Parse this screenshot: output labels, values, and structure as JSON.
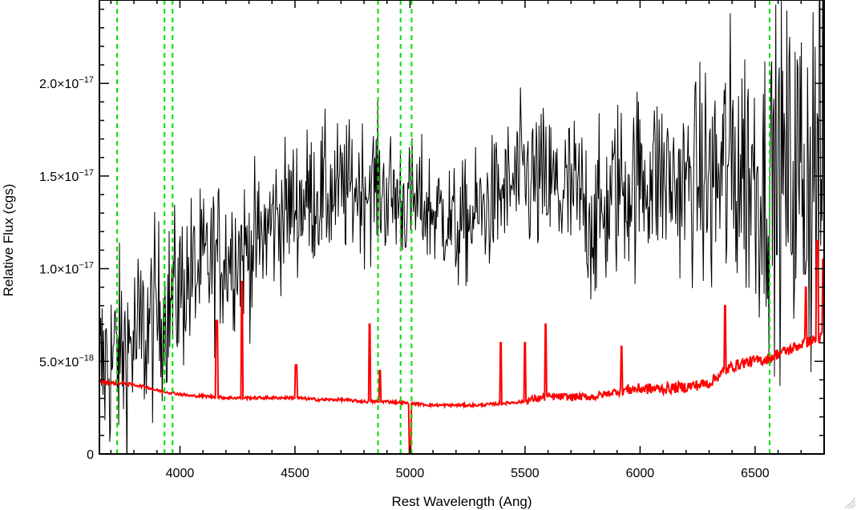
{
  "chart_data": {
    "type": "line",
    "xlabel": "Rest Wavelength (Ang)",
    "ylabel": "Relative Flux (cgs)",
    "xlim": [
      3650,
      6800
    ],
    "ylim": [
      0,
      2.45e-17
    ],
    "x_ticks": [
      4000,
      4500,
      5000,
      5500,
      6000,
      6500
    ],
    "x_tick_labels": [
      "4000",
      "4500",
      "5000",
      "5500",
      "6000",
      "6500"
    ],
    "y_ticks": [
      0,
      5e-18,
      1e-17,
      1.5e-17,
      2e-17
    ],
    "y_tick_labels": [
      {
        "mantissa": "0",
        "exp": ""
      },
      {
        "mantissa": "5.0×10",
        "exp": "−18"
      },
      {
        "mantissa": "1.0×10",
        "exp": "−17"
      },
      {
        "mantissa": "1.5×10",
        "exp": "−17"
      },
      {
        "mantissa": "2.0×10",
        "exp": "−17"
      }
    ],
    "vlines": [
      3727,
      3933,
      3968,
      4861,
      4959,
      5007,
      6563
    ],
    "grid": false,
    "series": [
      {
        "color": "#000000",
        "style": "solid",
        "x": [
          3650,
          3700,
          3750,
          3800,
          3850,
          3900,
          3950,
          4000,
          4050,
          4100,
          4150,
          4200,
          4250,
          4300,
          4350,
          4400,
          4450,
          4500,
          4550,
          4600,
          4650,
          4700,
          4750,
          4800,
          4850,
          4900,
          4950,
          5000,
          5050,
          5100,
          5150,
          5200,
          5250,
          5300,
          5350,
          5400,
          5450,
          5500,
          5550,
          5600,
          5650,
          5700,
          5750,
          5800,
          5850,
          5900,
          5950,
          6000,
          6050,
          6100,
          6150,
          6200,
          6250,
          6300,
          6350,
          6400,
          6450,
          6500,
          6550,
          6600,
          6650,
          6700,
          6750,
          6800
        ],
        "y": [
          4.5e-18,
          5e-18,
          5.5e-18,
          6e-18,
          6.5e-18,
          7.5e-18,
          8e-18,
          9e-18,
          9.5e-18,
          1e-17,
          1.05e-17,
          1.08e-17,
          1.1e-17,
          1.1e-17,
          1.15e-17,
          1.25e-17,
          1.3e-17,
          1.35e-17,
          1.38e-17,
          1.4e-17,
          1.4e-17,
          1.42e-17,
          1.43e-17,
          1.45e-17,
          1.45e-17,
          1.4e-17,
          1.38e-17,
          1.35e-17,
          1.35e-17,
          1.3e-17,
          1.3e-17,
          1.2e-17,
          1.25e-17,
          1.3e-17,
          1.35e-17,
          1.4e-17,
          1.45e-17,
          1.5e-17,
          1.45e-17,
          1.45e-17,
          1.4e-17,
          1.4e-17,
          1.35e-17,
          1.25e-17,
          1.3e-17,
          1.45e-17,
          1.45e-17,
          1.5e-17,
          1.5e-17,
          1.5e-17,
          1.45e-17,
          1.45e-17,
          1.5e-17,
          1.45e-17,
          1.5e-17,
          1.55e-17,
          1.55e-17,
          1.5e-17,
          1.45e-17,
          1.5e-17,
          1.5e-17,
          1.5e-17,
          1.55e-17,
          1.5e-17
        ],
        "noise": [
          3.5e-18,
          3.5e-18,
          3.5e-18,
          3.5e-18,
          3.5e-18,
          3.3e-18,
          3e-18,
          3e-18,
          3e-18,
          2.8e-18,
          2.8e-18,
          2.8e-18,
          2.6e-18,
          2.6e-18,
          2.6e-18,
          2.6e-18,
          2.5e-18,
          2.5e-18,
          2.5e-18,
          2.5e-18,
          2.5e-18,
          2.4e-18,
          2.4e-18,
          2.4e-18,
          2.4e-18,
          2.4e-18,
          2.4e-18,
          2.2e-18,
          2.2e-18,
          2.2e-18,
          2.2e-18,
          2.2e-18,
          2.2e-18,
          2.3e-18,
          2.3e-18,
          2.3e-18,
          2.5e-18,
          2.8e-18,
          2.8e-18,
          2.8e-18,
          3e-18,
          3e-18,
          3e-18,
          3e-18,
          3e-18,
          3.2e-18,
          3.2e-18,
          3.2e-18,
          3.2e-18,
          3.2e-18,
          3.2e-18,
          3.2e-18,
          3.4e-18,
          4.5e-18,
          5e-18,
          5e-18,
          5e-18,
          5e-18,
          5e-18,
          6e-18,
          6e-18,
          7e-18,
          8e-18,
          8e-18
        ]
      },
      {
        "color": "#ff0000",
        "style": "solid",
        "x": [
          3650,
          3700,
          3750,
          3800,
          3850,
          3900,
          3950,
          4000,
          4050,
          4100,
          4200,
          4300,
          4400,
          4500,
          4600,
          4700,
          4800,
          4900,
          5000,
          5100,
          5200,
          5300,
          5400,
          5500,
          5600,
          5700,
          5800,
          5900,
          6000,
          6100,
          6200,
          6300,
          6350,
          6400,
          6450,
          6500,
          6550,
          6600,
          6650,
          6700,
          6750,
          6800
        ],
        "y": [
          3.9e-18,
          3.8e-18,
          3.8e-18,
          3.7e-18,
          3.6e-18,
          3.4e-18,
          3.3e-18,
          3.2e-18,
          3.1e-18,
          3.1e-18,
          3e-18,
          3e-18,
          3e-18,
          3e-18,
          2.9e-18,
          2.9e-18,
          2.8e-18,
          2.8e-18,
          2.7e-18,
          2.6e-18,
          2.6e-18,
          2.6e-18,
          2.7e-18,
          2.8e-18,
          3e-18,
          3e-18,
          3e-18,
          3.3e-18,
          3.4e-18,
          3.4e-18,
          3.5e-18,
          3.7e-18,
          4.2e-18,
          4.6e-18,
          4.8e-18,
          4.9e-18,
          5e-18,
          5.3e-18,
          5.5e-18,
          5.8e-18,
          6e-18,
          6.2e-18
        ],
        "peaks": [
          {
            "x": 4160,
            "y": 7.2e-18
          },
          {
            "x": 4270,
            "y": 9.3e-18
          },
          {
            "x": 4505,
            "y": 4.8e-18
          },
          {
            "x": 4825,
            "y": 7e-18
          },
          {
            "x": 4870,
            "y": 4.5e-18
          },
          {
            "x": 5000,
            "y": 0
          },
          {
            "x": 5395,
            "y": 6e-18
          },
          {
            "x": 5500,
            "y": 6e-18
          },
          {
            "x": 5590,
            "y": 7e-18
          },
          {
            "x": 5920,
            "y": 5.8e-18
          },
          {
            "x": 6370,
            "y": 8e-18
          },
          {
            "x": 6720,
            "y": 9e-18
          },
          {
            "x": 6770,
            "y": 1.15e-17
          },
          {
            "x": 6795,
            "y": 1.05e-17
          }
        ]
      }
    ]
  }
}
